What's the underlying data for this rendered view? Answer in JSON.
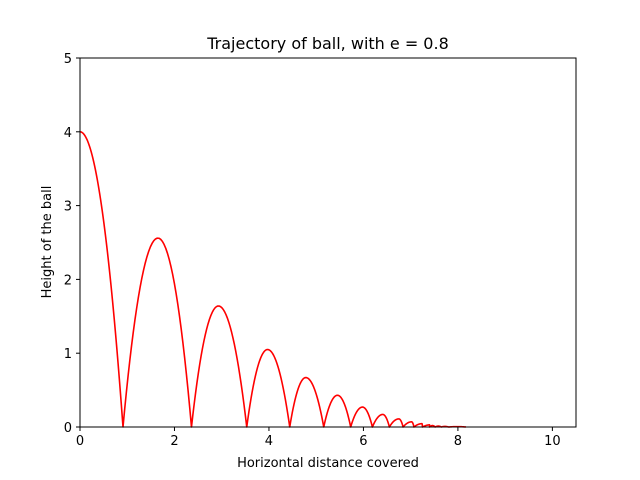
{
  "chart_data": {
    "type": "line",
    "title": "Trajectory of ball, with e = 0.8",
    "xlabel": "Horizontal distance covered",
    "ylabel": "Height of the ball",
    "xlim": [
      0,
      10.5
    ],
    "ylim": [
      0,
      5
    ],
    "xticks": [
      "0",
      "2",
      "4",
      "6",
      "8",
      "10"
    ],
    "yticks": [
      "0",
      "1",
      "2",
      "3",
      "4",
      "5"
    ],
    "grid": false,
    "series": [
      {
        "color": "#ff0000",
        "initial_height": 4.0,
        "restitution": 0.8,
        "peaks": [
          {
            "x": 0.0,
            "y": 4.0
          },
          {
            "x": 1.65,
            "y": 2.56
          },
          {
            "x": 2.93,
            "y": 1.64
          },
          {
            "x": 3.97,
            "y": 1.05
          },
          {
            "x": 4.78,
            "y": 0.67
          },
          {
            "x": 5.45,
            "y": 0.43
          },
          {
            "x": 5.98,
            "y": 0.27
          },
          {
            "x": 6.41,
            "y": 0.17
          },
          {
            "x": 6.75,
            "y": 0.11
          },
          {
            "x": 7.02,
            "y": 0.07
          },
          {
            "x": 7.24,
            "y": 0.045
          },
          {
            "x": 7.42,
            "y": 0.03
          }
        ],
        "ground_contacts": [
          0.91,
          2.36,
          3.53,
          4.44,
          5.16,
          5.73,
          6.19,
          6.55,
          6.84,
          7.07,
          7.25,
          7.4,
          7.52,
          7.65,
          7.8,
          8.17
        ]
      }
    ]
  }
}
